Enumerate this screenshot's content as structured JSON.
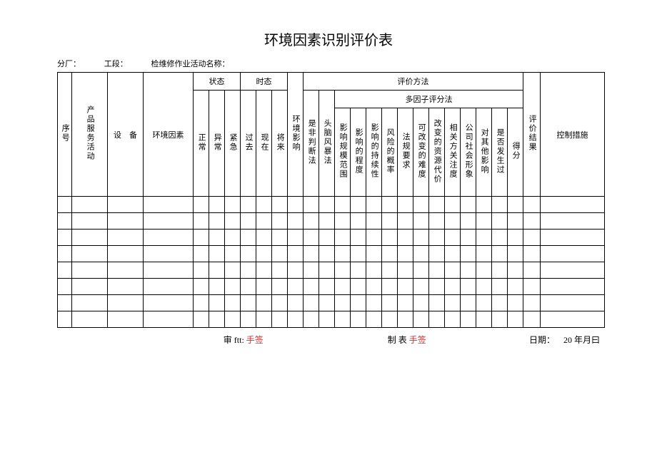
{
  "title": "环境因素识别评价表",
  "meta": {
    "factory_label": "分厂：",
    "section_label": "工段：",
    "activity_label": "检维修作业活动名称："
  },
  "headers": {
    "seq": "序号",
    "product_activity": "产品服务活动",
    "equipment": "设　备",
    "env_factor": "环境因素",
    "state_group": "状态",
    "tense_group": "时态",
    "eval_method_group": "评价方法",
    "multi_factor_group": "多因子评分法",
    "state": {
      "normal": "正常",
      "abnormal": "异常",
      "emergency": "紧急"
    },
    "tense": {
      "past": "过去",
      "present": "现在",
      "future": "将来"
    },
    "env_impact": "环境影响",
    "judge": "是非判断法",
    "brainstorm": "头脑风暴法",
    "mf": {
      "scale": "影响规模范围",
      "degree": "影响的程度",
      "persist": "影响的持续性",
      "risk_prob": "风险的概率",
      "law_req": "法规要求",
      "changeable": "可改变的难度",
      "resource_cost": "改变的资源代价",
      "stakeholder": "相关方关注度",
      "company_image": "公司社会形象",
      "other_impact": "对其他影响",
      "happened": "是否发生过",
      "score": "得分"
    },
    "eval_result": "评价结果",
    "control_measure": "控制措施"
  },
  "footer": {
    "review_label": "审 ftt:",
    "review_sign": "手签",
    "make_label": "制 表",
    "make_sign": "手签",
    "date_label": "日期：",
    "date_value": "20 年月曰"
  },
  "data_row_count": 8
}
